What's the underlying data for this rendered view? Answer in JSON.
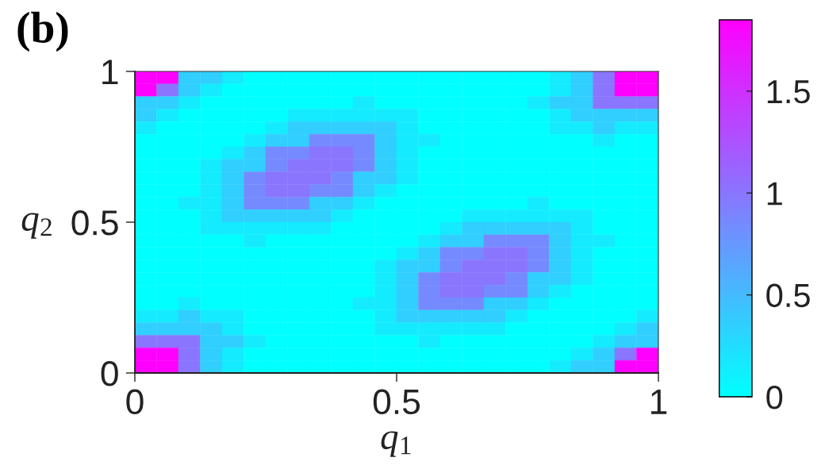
{
  "chart_data": {
    "type": "heatmap",
    "title": "(b)",
    "xlabel": "q$_{1}$",
    "ylabel": "q$_{2}$",
    "xlim": [
      0,
      1
    ],
    "ylim": [
      0,
      1
    ],
    "xticks": [
      0,
      0.5,
      1
    ],
    "yticks": [
      0,
      0.5,
      1
    ],
    "clim": [
      0,
      1.85
    ],
    "cticks": [
      0,
      0.5,
      1,
      1.5
    ],
    "cells": [
      [
        1.85,
        1.85,
        0.35,
        0.35,
        0.15,
        0,
        0,
        0,
        0,
        0,
        0,
        0,
        0,
        0,
        0,
        0,
        0,
        0,
        0,
        0.15,
        0.35,
        1,
        1.85,
        1.85
      ],
      [
        1.85,
        1,
        0.35,
        0.15,
        0,
        0,
        0,
        0,
        0,
        0,
        0,
        0,
        0,
        0,
        0,
        0,
        0,
        0,
        0,
        0.15,
        0.35,
        1,
        1.85,
        1.85
      ],
      [
        0.35,
        0.35,
        0.15,
        0,
        0,
        0,
        0,
        0,
        0,
        0,
        0.15,
        0,
        0,
        0,
        0,
        0,
        0,
        0,
        0.15,
        0.35,
        0.35,
        1,
        1,
        1
      ],
      [
        0.35,
        0.15,
        0,
        0,
        0,
        0,
        0,
        0.15,
        0.15,
        0.15,
        0.15,
        0.15,
        0.15,
        0,
        0,
        0,
        0,
        0,
        0,
        0.15,
        0.35,
        0.35,
        0.35,
        0.35
      ],
      [
        0.15,
        0,
        0,
        0,
        0,
        0,
        0.15,
        0.35,
        0.35,
        0.35,
        0.35,
        0.35,
        0.15,
        0,
        0,
        0,
        0,
        0,
        0,
        0.15,
        0.15,
        0.35,
        0.15,
        0.15
      ],
      [
        0,
        0,
        0,
        0,
        0,
        0.15,
        0.35,
        0.35,
        0.85,
        0.85,
        0.85,
        0.35,
        0.15,
        0.15,
        0,
        0,
        0,
        0,
        0,
        0,
        0,
        0.15,
        0,
        0
      ],
      [
        0,
        0,
        0,
        0,
        0.15,
        0.35,
        0.85,
        0.85,
        1,
        1,
        0.85,
        0.35,
        0.15,
        0,
        0,
        0,
        0,
        0,
        0,
        0,
        0,
        0,
        0,
        0
      ],
      [
        0,
        0,
        0,
        0.15,
        0.35,
        0.35,
        0.85,
        1,
        1,
        1,
        0.85,
        0.35,
        0.15,
        0,
        0,
        0,
        0,
        0,
        0,
        0,
        0,
        0,
        0,
        0
      ],
      [
        0,
        0,
        0,
        0.15,
        0.35,
        0.85,
        1,
        1,
        1,
        0.85,
        0.35,
        0.35,
        0.15,
        0,
        0,
        0,
        0,
        0,
        0,
        0,
        0,
        0,
        0,
        0
      ],
      [
        0,
        0,
        0,
        0.15,
        0.35,
        0.85,
        1,
        1,
        0.85,
        0.85,
        0.35,
        0.15,
        0,
        0,
        0,
        0,
        0,
        0,
        0,
        0,
        0,
        0,
        0,
        0
      ],
      [
        0,
        0,
        0.15,
        0.15,
        0.35,
        0.85,
        0.85,
        0.85,
        0.35,
        0.35,
        0.15,
        0,
        0,
        0,
        0,
        0,
        0,
        0,
        0.15,
        0,
        0,
        0,
        0,
        0
      ],
      [
        0,
        0,
        0,
        0.15,
        0.35,
        0.35,
        0.35,
        0.35,
        0.35,
        0.15,
        0,
        0,
        0,
        0,
        0,
        0.15,
        0.15,
        0.15,
        0.15,
        0.15,
        0.15,
        0,
        0,
        0
      ],
      [
        0,
        0,
        0,
        0.15,
        0.15,
        0.15,
        0.15,
        0.15,
        0.15,
        0,
        0,
        0,
        0,
        0,
        0.15,
        0.35,
        0.35,
        0.35,
        0.35,
        0.35,
        0.15,
        0,
        0,
        0
      ],
      [
        0,
        0,
        0,
        0,
        0,
        0.15,
        0,
        0,
        0,
        0,
        0,
        0,
        0,
        0.15,
        0.35,
        0.35,
        0.85,
        0.85,
        0.85,
        0.35,
        0.15,
        0.15,
        0,
        0
      ],
      [
        0,
        0,
        0,
        0,
        0,
        0,
        0,
        0,
        0,
        0,
        0,
        0,
        0.15,
        0.35,
        0.85,
        0.85,
        1,
        1,
        0.85,
        0.35,
        0.15,
        0,
        0,
        0
      ],
      [
        0,
        0,
        0,
        0,
        0,
        0,
        0,
        0,
        0,
        0,
        0,
        0.15,
        0.35,
        0.35,
        0.85,
        1,
        1,
        1,
        0.85,
        0.35,
        0.15,
        0,
        0,
        0
      ],
      [
        0,
        0,
        0,
        0,
        0,
        0,
        0,
        0,
        0,
        0,
        0,
        0.15,
        0.35,
        0.85,
        1,
        1,
        1,
        0.85,
        0.35,
        0.35,
        0.15,
        0,
        0,
        0
      ],
      [
        0,
        0,
        0,
        0,
        0,
        0,
        0,
        0,
        0,
        0,
        0,
        0.15,
        0.35,
        0.85,
        1,
        1,
        0.85,
        0.85,
        0.35,
        0.15,
        0,
        0,
        0,
        0
      ],
      [
        0,
        0,
        0.15,
        0,
        0,
        0,
        0,
        0,
        0,
        0,
        0.15,
        0.15,
        0.35,
        0.85,
        0.85,
        0.85,
        0.35,
        0.35,
        0.15,
        0,
        0,
        0,
        0,
        0
      ],
      [
        0.15,
        0.15,
        0.35,
        0.15,
        0.15,
        0,
        0,
        0,
        0,
        0,
        0,
        0.15,
        0.35,
        0.35,
        0.35,
        0.35,
        0.35,
        0.15,
        0,
        0,
        0,
        0,
        0,
        0.15
      ],
      [
        0.35,
        0.35,
        0.35,
        0.35,
        0.15,
        0,
        0,
        0,
        0,
        0,
        0,
        0.15,
        0.15,
        0.15,
        0.15,
        0.15,
        0.15,
        0,
        0,
        0,
        0,
        0,
        0.15,
        0.35
      ],
      [
        1,
        1,
        1,
        0.35,
        0.35,
        0.15,
        0,
        0,
        0,
        0,
        0,
        0,
        0,
        0.15,
        0,
        0,
        0,
        0,
        0,
        0,
        0,
        0.15,
        0.35,
        0.35
      ],
      [
        1.85,
        1.85,
        1,
        0.35,
        0.15,
        0,
        0,
        0,
        0,
        0,
        0,
        0,
        0,
        0,
        0,
        0,
        0,
        0,
        0,
        0,
        0.15,
        0.35,
        1,
        1.85
      ],
      [
        1.85,
        1.85,
        1,
        0.35,
        0.15,
        0,
        0,
        0,
        0,
        0,
        0,
        0,
        0,
        0,
        0,
        0,
        0,
        0,
        0,
        0.15,
        0.35,
        0.35,
        1.85,
        1.85
      ]
    ]
  }
}
